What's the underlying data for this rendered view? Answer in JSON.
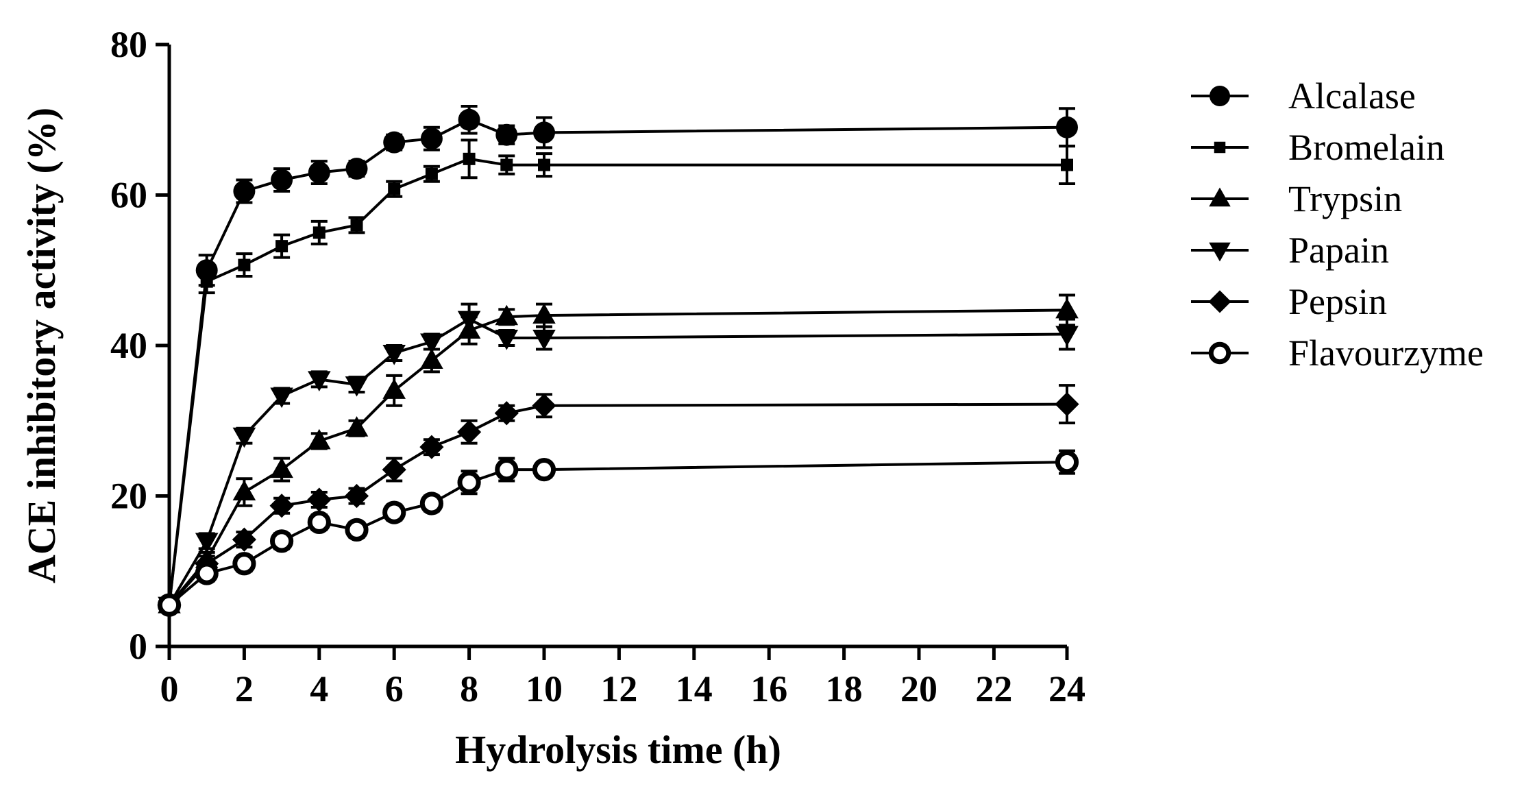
{
  "chart_data": {
    "type": "line",
    "xlabel": "Hydrolysis time (h)",
    "ylabel": "ACE inhibitory activity (%)",
    "ylim": [
      0,
      80
    ],
    "y_ticks": [
      "0",
      "20",
      "40",
      "60",
      "80"
    ],
    "x_ticks": [
      "0",
      "2",
      "4",
      "6",
      "8",
      "10",
      "12",
      "14",
      "16",
      "18",
      "20",
      "22",
      "24"
    ],
    "x_scale_note": "axis break: 10 h to 24 h compressed (tick 24 follows 22)",
    "x": [
      0,
      1,
      2,
      3,
      4,
      5,
      6,
      7,
      8,
      9,
      10,
      24
    ],
    "legend_position": "right",
    "grid": false,
    "series": [
      {
        "name": "Alcalase",
        "marker": "circle",
        "values": [
          5.5,
          50,
          60.5,
          62,
          63,
          63.5,
          67,
          67.5,
          70,
          68,
          68.3,
          69
        ],
        "errors": [
          0.5,
          2,
          1.5,
          1.5,
          1.5,
          1,
          1,
          1.5,
          1.8,
          1.2,
          2,
          2.5
        ]
      },
      {
        "name": "Bromelain",
        "marker": "square",
        "values": [
          5.5,
          48.5,
          50.7,
          53.2,
          55,
          56,
          60.8,
          62.8,
          64.8,
          64,
          64,
          64
        ],
        "errors": [
          0.5,
          1.5,
          1.5,
          1.5,
          1.5,
          1,
          1,
          1,
          2.5,
          1.2,
          1.5,
          2.5
        ]
      },
      {
        "name": "Trypsin",
        "marker": "triangle-up",
        "values": [
          5.5,
          11.5,
          20.5,
          23.5,
          27.3,
          29,
          34,
          38,
          42,
          43.8,
          44,
          44.7
        ],
        "errors": [
          0.5,
          1,
          1.8,
          1.5,
          1,
          1,
          2,
          1.5,
          1.8,
          1,
          1.5,
          2
        ]
      },
      {
        "name": "Papain",
        "marker": "triangle-down",
        "values": [
          5.5,
          14,
          28,
          33.3,
          35.5,
          34.8,
          39,
          40.5,
          43.5,
          41,
          41,
          41.5
        ],
        "errors": [
          0.5,
          1,
          1,
          1,
          1,
          1,
          1,
          1,
          2,
          1,
          1.5,
          2
        ]
      },
      {
        "name": "Pepsin",
        "marker": "diamond",
        "values": [
          5.5,
          11,
          14.2,
          18.7,
          19.5,
          20,
          23.5,
          26.5,
          28.5,
          31,
          32,
          32.2
        ],
        "errors": [
          0.5,
          1,
          1,
          1,
          1,
          1,
          1.5,
          1,
          1.5,
          1,
          1.5,
          2.5
        ]
      },
      {
        "name": "Flavourzyme",
        "marker": "open-circle",
        "values": [
          5.5,
          9.7,
          11,
          14,
          16.5,
          15.5,
          17.8,
          19,
          21.8,
          23.5,
          23.5,
          24.5
        ],
        "errors": [
          0.5,
          1,
          1,
          1,
          1,
          1,
          1,
          1,
          1.5,
          1.5,
          1,
          1.5
        ]
      }
    ]
  }
}
